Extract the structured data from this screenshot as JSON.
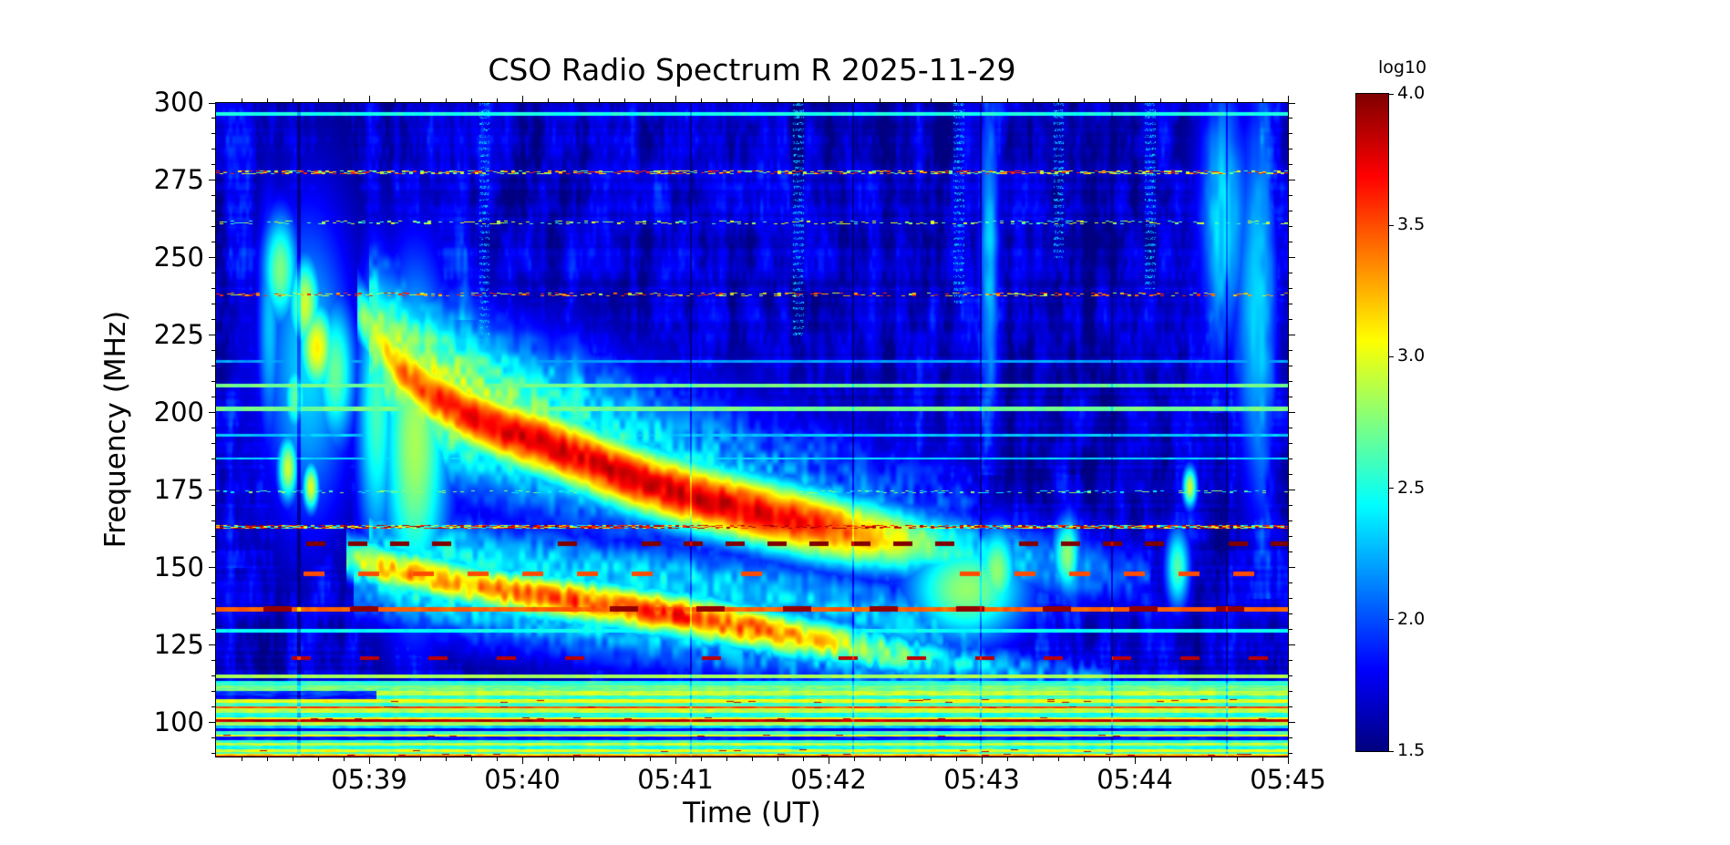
{
  "figure": {
    "background": "#ffffff",
    "accent_colors": {
      "deep_blue": "#000080",
      "dark_red": "#800000"
    }
  },
  "chart_data": {
    "type": "heatmap",
    "subtype": "radio-spectrogram",
    "title": "CSO Radio Spectrum R 2025-11-29",
    "xlabel": "Time (UT)",
    "ylabel": "Frequency (MHz)",
    "colorbar_label": "log10",
    "colormap": "jet",
    "grid": false,
    "time_start": "05:38",
    "time_end": "05:45",
    "duration_min": 7,
    "freq_min_mhz": 89,
    "freq_max_mhz": 300,
    "value_min": 1.5,
    "value_max": 4.0,
    "base_level": 1.6,
    "x_ticks": [
      {
        "minute": 1,
        "label": "05:39"
      },
      {
        "minute": 2,
        "label": "05:40"
      },
      {
        "minute": 3,
        "label": "05:41"
      },
      {
        "minute": 4,
        "label": "05:42"
      },
      {
        "minute": 5,
        "label": "05:43"
      },
      {
        "minute": 6,
        "label": "05:44"
      },
      {
        "minute": 7,
        "label": "05:45"
      }
    ],
    "y_ticks": [
      {
        "value": 300,
        "label": "300"
      },
      {
        "value": 275,
        "label": "275"
      },
      {
        "value": 250,
        "label": "250"
      },
      {
        "value": 225,
        "label": "225"
      },
      {
        "value": 200,
        "label": "200"
      },
      {
        "value": 175,
        "label": "175"
      },
      {
        "value": 150,
        "label": "150"
      },
      {
        "value": 125,
        "label": "125"
      },
      {
        "value": 100,
        "label": "100"
      }
    ],
    "colorbar_ticks": [
      {
        "value": 4.0,
        "label": "4.0"
      },
      {
        "value": 3.5,
        "label": "3.5"
      },
      {
        "value": 3.0,
        "label": "3.0"
      },
      {
        "value": 2.5,
        "label": "2.5"
      },
      {
        "value": 2.0,
        "label": "2.0"
      },
      {
        "value": 1.5,
        "label": "1.5"
      }
    ],
    "x_minor_step_min": 0.1666667,
    "y_minor_step_mhz": 5,
    "jet_stops": [
      "#000080",
      "#0000e6",
      "#004dff",
      "#00b3ff",
      "#1affe6",
      "#80ff80",
      "#e5ff00",
      "#ffb300",
      "#ff4d00",
      "#e60000",
      "#800000"
    ],
    "rfi_lines": [
      {
        "freq": 296.5,
        "width": 1.2,
        "style": "solid",
        "value": 2.5
      },
      {
        "freq": 277.6,
        "width": 1.2,
        "style": "dots",
        "value": 2.9,
        "palette": [
          2.7,
          3.1,
          3.6
        ],
        "density": 0.5
      },
      {
        "freq": 261.5,
        "width": 1.0,
        "style": "dots",
        "value": 2.7,
        "palette": [
          2.6,
          3.0
        ],
        "density": 0.22
      },
      {
        "freq": 238.3,
        "width": 1.2,
        "style": "dots",
        "value": 3.1,
        "palette": [
          2.9,
          3.3,
          3.6
        ],
        "density": 0.3
      },
      {
        "freq": 216.5,
        "width": 0.8,
        "style": "solid",
        "value": 2.2
      },
      {
        "freq": 208.8,
        "width": 1.4,
        "style": "solid",
        "value": 2.72
      },
      {
        "freq": 201.3,
        "width": 1.4,
        "style": "solid",
        "value": 2.72
      },
      {
        "freq": 192.8,
        "width": 0.8,
        "style": "solid",
        "value": 2.3
      },
      {
        "freq": 185.2,
        "width": 0.8,
        "style": "solid",
        "value": 2.35
      },
      {
        "freq": 174.6,
        "width": 0.9,
        "style": "dots",
        "value": 2.5,
        "palette": [
          2.4,
          2.8
        ],
        "density": 0.28
      },
      {
        "freq": 163.2,
        "width": 1.3,
        "style": "dots",
        "value": 3.2,
        "palette": [
          2.4,
          3.0,
          3.6,
          3.9
        ],
        "density": 0.85
      },
      {
        "freq": 157.7,
        "width": 1.3,
        "style": "dash",
        "value": 4.0,
        "period": 46,
        "duty": 0.45
      },
      {
        "freq": 148.0,
        "width": 1.4,
        "style": "dash",
        "value": 3.5,
        "period": 60,
        "duty": 0.38
      },
      {
        "freq": 136.6,
        "width": 1.5,
        "style": "solid",
        "value": 3.45
      },
      {
        "freq": 136.6,
        "width": 1.8,
        "style": "dash",
        "value": 3.95,
        "period": 95,
        "duty": 0.32
      },
      {
        "freq": 129.6,
        "width": 1.0,
        "style": "solid",
        "value": 2.45
      },
      {
        "freq": 120.8,
        "width": 1.4,
        "style": "dash",
        "value": 3.85,
        "period": 75,
        "duty": 0.28
      },
      {
        "freq": 114.9,
        "width": 0.9,
        "style": "solid",
        "value": 2.85
      },
      {
        "freq": 112.4,
        "width": 1.1,
        "style": "solid",
        "value": 2.55
      }
    ],
    "bottom_band_stripes": [
      [
        113.5,
        112.0,
        2.5
      ],
      [
        112.0,
        110.3,
        2.72
      ],
      [
        110.3,
        108.8,
        2.9,
        1.05,
        1.95
      ],
      [
        108.8,
        107.6,
        2.55,
        1.05,
        1.85
      ],
      [
        107.6,
        106.4,
        3.0
      ],
      [
        106.4,
        105.3,
        2.6
      ],
      [
        105.3,
        104.7,
        3.5
      ],
      [
        104.7,
        103.2,
        2.9
      ],
      [
        103.2,
        101.8,
        2.5
      ],
      [
        101.8,
        101.0,
        3.05
      ],
      [
        101.0,
        100.3,
        3.85
      ],
      [
        100.3,
        99.0,
        2.85
      ],
      [
        99.0,
        98.0,
        2.3
      ],
      [
        98.0,
        97.2,
        1.8
      ],
      [
        97.2,
        96.2,
        2.6
      ],
      [
        96.2,
        95.4,
        3.0
      ],
      [
        95.4,
        94.4,
        1.85
      ],
      [
        94.4,
        93.4,
        2.55
      ],
      [
        93.4,
        92.4,
        2.9
      ],
      [
        92.4,
        91.4,
        2.5
      ],
      [
        91.4,
        90.6,
        3.0
      ],
      [
        90.6,
        89.8,
        2.6
      ],
      [
        89.8,
        89.3,
        3.15
      ],
      [
        89.3,
        88.9,
        3.9
      ]
    ],
    "burst_tracks": [
      {
        "name": "main-drifting-band",
        "sigma_mhz": 8.5,
        "patch": 0.3,
        "points": [
          [
            0.92,
            234,
            2.7
          ],
          [
            1.05,
            224,
            3.15
          ],
          [
            1.2,
            214,
            3.5
          ],
          [
            1.4,
            206,
            3.7
          ],
          [
            1.65,
            199,
            3.8
          ],
          [
            1.9,
            194,
            3.9
          ],
          [
            2.15,
            190,
            3.95
          ],
          [
            2.4,
            185,
            3.9
          ],
          [
            2.65,
            180,
            3.95
          ],
          [
            2.9,
            176,
            3.9
          ],
          [
            3.15,
            172.5,
            3.95
          ],
          [
            3.45,
            169,
            3.9
          ],
          [
            3.7,
            166,
            3.85
          ],
          [
            3.95,
            163.5,
            3.75
          ],
          [
            4.2,
            161,
            3.5
          ],
          [
            4.45,
            159,
            3.15
          ],
          [
            4.7,
            157,
            2.8
          ],
          [
            5.0,
            154.5,
            2.5
          ],
          [
            5.6,
            150,
            2.3
          ],
          [
            6.1,
            147,
            2.1
          ]
        ]
      },
      {
        "name": "main-band-halo",
        "sigma_mhz": 20,
        "patch": 0.5,
        "points": [
          [
            1.0,
            225,
            3.0
          ],
          [
            1.3,
            212,
            3.2
          ],
          [
            1.6,
            204,
            3.2
          ],
          [
            2.0,
            197,
            3.0
          ],
          [
            2.5,
            189,
            2.8
          ],
          [
            3.0,
            182,
            2.65
          ],
          [
            3.5,
            175,
            2.5
          ],
          [
            4.0,
            169,
            2.4
          ],
          [
            4.5,
            163,
            2.3
          ],
          [
            5.0,
            157,
            2.2
          ]
        ]
      },
      {
        "name": "lower-drifting-band",
        "sigma_mhz": 5.5,
        "patch": 0.55,
        "points": [
          [
            0.85,
            154,
            3.0
          ],
          [
            1.1,
            150,
            3.45
          ],
          [
            1.4,
            147,
            3.6
          ],
          [
            1.7,
            144,
            3.5
          ],
          [
            2.0,
            141.5,
            3.65
          ],
          [
            2.3,
            139.5,
            3.8
          ],
          [
            2.6,
            137.5,
            3.75
          ],
          [
            2.9,
            135.5,
            3.85
          ],
          [
            3.2,
            133,
            3.8
          ],
          [
            3.5,
            130.5,
            3.7
          ],
          [
            3.8,
            127.5,
            3.5
          ],
          [
            4.1,
            125,
            3.25
          ],
          [
            4.4,
            122.5,
            2.95
          ],
          [
            4.8,
            119.5,
            2.6
          ],
          [
            5.3,
            116.5,
            2.4
          ],
          [
            5.9,
            113.5,
            2.2
          ]
        ]
      },
      {
        "name": "lower-band-halo",
        "sigma_mhz": 11,
        "patch": 0.5,
        "points": [
          [
            0.9,
            150,
            2.6
          ],
          [
            1.3,
            145,
            2.75
          ],
          [
            1.8,
            140,
            2.7
          ],
          [
            2.3,
            136,
            2.65
          ],
          [
            2.8,
            132,
            2.6
          ],
          [
            3.3,
            128,
            2.55
          ],
          [
            3.8,
            124,
            2.5
          ],
          [
            4.3,
            120,
            2.4
          ],
          [
            5.0,
            116,
            2.3
          ]
        ]
      },
      {
        "name": "inter-band-emission",
        "sigma_mhz": 9,
        "patch": 0.4,
        "points": [
          [
            1.0,
            160,
            2.5
          ],
          [
            1.5,
            155,
            2.6
          ],
          [
            2.0,
            151,
            2.6
          ],
          [
            2.5,
            148,
            2.55
          ],
          [
            3.0,
            145,
            2.6
          ],
          [
            3.5,
            142,
            2.55
          ],
          [
            4.0,
            138,
            2.5
          ],
          [
            4.5,
            133,
            2.45
          ],
          [
            5.0,
            128,
            2.35
          ]
        ]
      }
    ],
    "blobs": [
      [
        0.42,
        246,
        0.09,
        14,
        2.75
      ],
      [
        0.58,
        235,
        0.08,
        12,
        2.95
      ],
      [
        0.66,
        221,
        0.09,
        11,
        3.1
      ],
      [
        0.52,
        205,
        0.06,
        9,
        2.7
      ],
      [
        0.47,
        182,
        0.05,
        8,
        2.95
      ],
      [
        0.62,
        176,
        0.04,
        6,
        3.0
      ],
      [
        0.78,
        213,
        0.1,
        18,
        2.7
      ],
      [
        0.6,
        215,
        0.22,
        38,
        2.35
      ],
      [
        0.35,
        228,
        0.06,
        30,
        2.3
      ],
      [
        1.3,
        190,
        0.17,
        40,
        2.85
      ],
      [
        1.05,
        200,
        0.1,
        35,
        2.6
      ],
      [
        4.9,
        143,
        0.3,
        13,
        2.8
      ],
      [
        5.1,
        149,
        0.1,
        11,
        2.8
      ],
      [
        5.55,
        154,
        0.07,
        9,
        2.7
      ],
      [
        6.28,
        150,
        0.06,
        10,
        2.65
      ],
      [
        6.36,
        176,
        0.035,
        5,
        2.95
      ],
      [
        6.6,
        262,
        0.14,
        28,
        2.2
      ],
      [
        6.78,
        235,
        0.1,
        45,
        2.25
      ],
      [
        5.05,
        252,
        0.05,
        40,
        2.1
      ]
    ],
    "dark_columns": [
      [
        0.54,
        2
      ],
      [
        3.1,
        1
      ],
      [
        4.16,
        1
      ],
      [
        4.99,
        1
      ],
      [
        5.85,
        1
      ],
      [
        6.6,
        1
      ]
    ],
    "bright_columns": [
      [
        0.15,
        0.05,
        150,
        300,
        0.22
      ],
      [
        1.62,
        0.04,
        230,
        300,
        0.3
      ],
      [
        2.9,
        0.04,
        240,
        300,
        0.18
      ],
      [
        5.05,
        0.05,
        180,
        300,
        0.28
      ],
      [
        6.55,
        0.08,
        200,
        300,
        0.3
      ],
      [
        6.85,
        0.06,
        140,
        300,
        0.28
      ],
      [
        2.35,
        0.03,
        200,
        300,
        0.16
      ],
      [
        3.55,
        0.03,
        210,
        300,
        0.16
      ],
      [
        5.6,
        0.04,
        130,
        180,
        0.25
      ]
    ],
    "dot_columns": [
      [
        1.75,
        205,
        300
      ],
      [
        3.8,
        225,
        300
      ],
      [
        4.85,
        235,
        300
      ],
      [
        5.5,
        250,
        300
      ],
      [
        6.1,
        240,
        300
      ]
    ]
  }
}
